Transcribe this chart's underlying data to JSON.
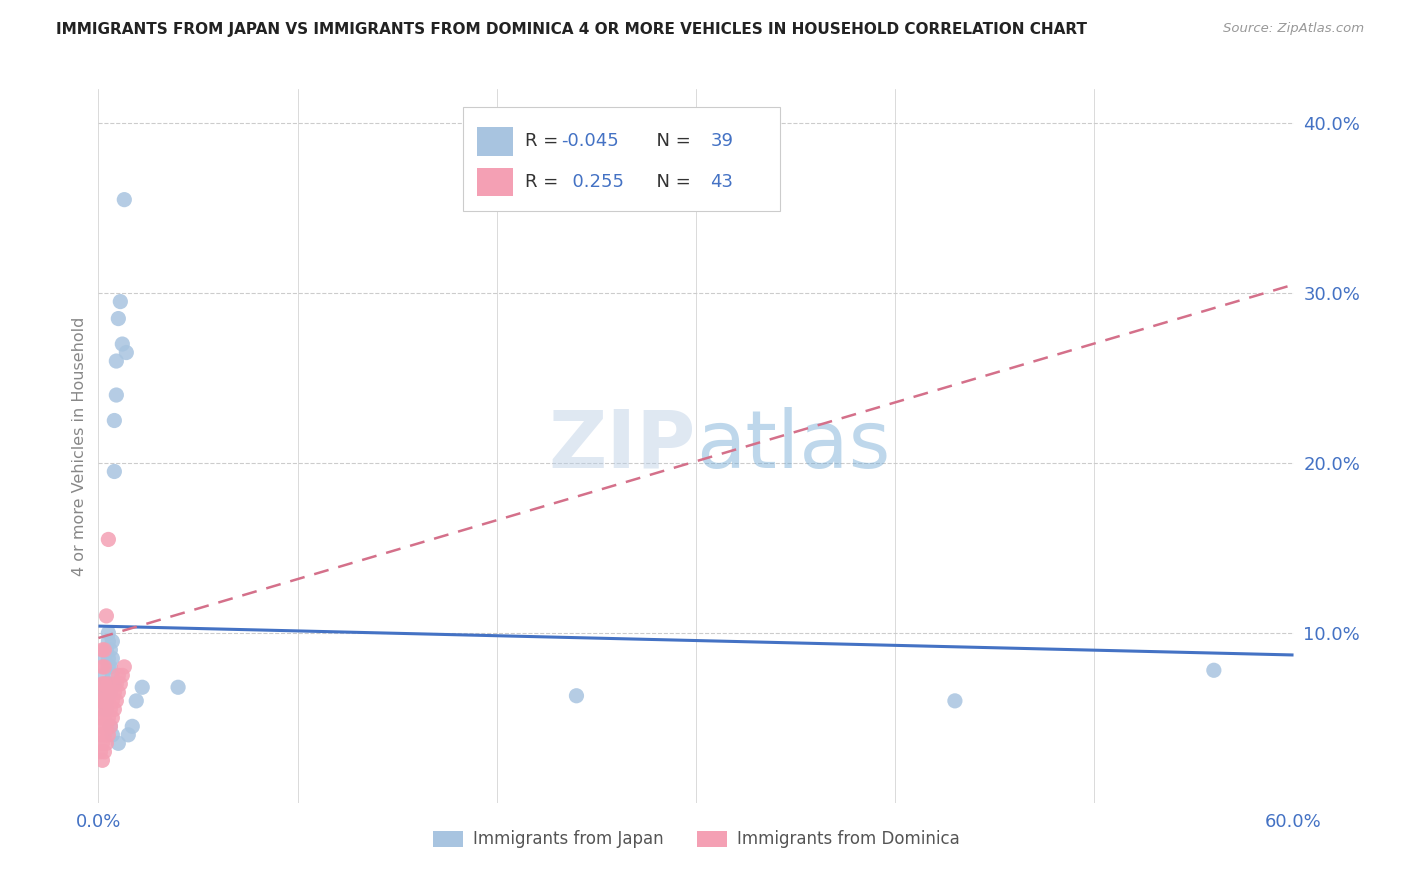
{
  "title": "IMMIGRANTS FROM JAPAN VS IMMIGRANTS FROM DOMINICA 4 OR MORE VEHICLES IN HOUSEHOLD CORRELATION CHART",
  "source": "Source: ZipAtlas.com",
  "ylabel": "4 or more Vehicles in Household",
  "xlim": [
    0.0,
    0.6
  ],
  "ylim": [
    0.0,
    0.42
  ],
  "xtick_positions": [
    0.0,
    0.1,
    0.2,
    0.3,
    0.4,
    0.5,
    0.6
  ],
  "ytick_positions": [
    0.1,
    0.2,
    0.3,
    0.4
  ],
  "r_japan": -0.045,
  "n_japan": 39,
  "r_dominica": 0.255,
  "n_dominica": 43,
  "japan_color": "#a8c4e0",
  "dominica_color": "#f4a0b4",
  "japan_line_color": "#4472c4",
  "dominica_line_color": "#d4708a",
  "grid_color": "#cccccc",
  "tick_label_color": "#4472c4",
  "axis_label_color": "#888888",
  "watermark_color": "#c8d8e8",
  "japan_trend": [
    0.104,
    0.087
  ],
  "dominica_trend": [
    0.097,
    0.305
  ],
  "japan_x": [
    0.002,
    0.003,
    0.003,
    0.004,
    0.004,
    0.004,
    0.005,
    0.005,
    0.005,
    0.005,
    0.005,
    0.006,
    0.006,
    0.006,
    0.007,
    0.007,
    0.007,
    0.008,
    0.008,
    0.008,
    0.009,
    0.009,
    0.01,
    0.011,
    0.012,
    0.013,
    0.014,
    0.015,
    0.017,
    0.019,
    0.022,
    0.04,
    0.24,
    0.43,
    0.56,
    0.004,
    0.006,
    0.007,
    0.01
  ],
  "japan_y": [
    0.075,
    0.065,
    0.085,
    0.07,
    0.06,
    0.09,
    0.08,
    0.07,
    0.095,
    0.085,
    0.1,
    0.065,
    0.08,
    0.09,
    0.075,
    0.085,
    0.095,
    0.195,
    0.225,
    0.07,
    0.26,
    0.24,
    0.285,
    0.295,
    0.27,
    0.355,
    0.265,
    0.04,
    0.045,
    0.06,
    0.068,
    0.068,
    0.063,
    0.06,
    0.078,
    0.055,
    0.045,
    0.04,
    0.035
  ],
  "dominica_x": [
    0.001,
    0.001,
    0.001,
    0.001,
    0.002,
    0.002,
    0.002,
    0.002,
    0.002,
    0.002,
    0.002,
    0.002,
    0.003,
    0.003,
    0.003,
    0.003,
    0.003,
    0.003,
    0.003,
    0.004,
    0.004,
    0.004,
    0.004,
    0.005,
    0.005,
    0.005,
    0.005,
    0.006,
    0.006,
    0.006,
    0.007,
    0.007,
    0.008,
    0.008,
    0.009,
    0.009,
    0.01,
    0.01,
    0.011,
    0.012,
    0.013,
    0.005,
    0.004
  ],
  "dominica_y": [
    0.03,
    0.04,
    0.05,
    0.06,
    0.025,
    0.035,
    0.045,
    0.055,
    0.065,
    0.07,
    0.08,
    0.09,
    0.03,
    0.04,
    0.05,
    0.06,
    0.07,
    0.08,
    0.09,
    0.035,
    0.045,
    0.055,
    0.065,
    0.04,
    0.05,
    0.06,
    0.07,
    0.045,
    0.055,
    0.065,
    0.05,
    0.06,
    0.055,
    0.065,
    0.06,
    0.07,
    0.065,
    0.075,
    0.07,
    0.075,
    0.08,
    0.155,
    0.11
  ]
}
